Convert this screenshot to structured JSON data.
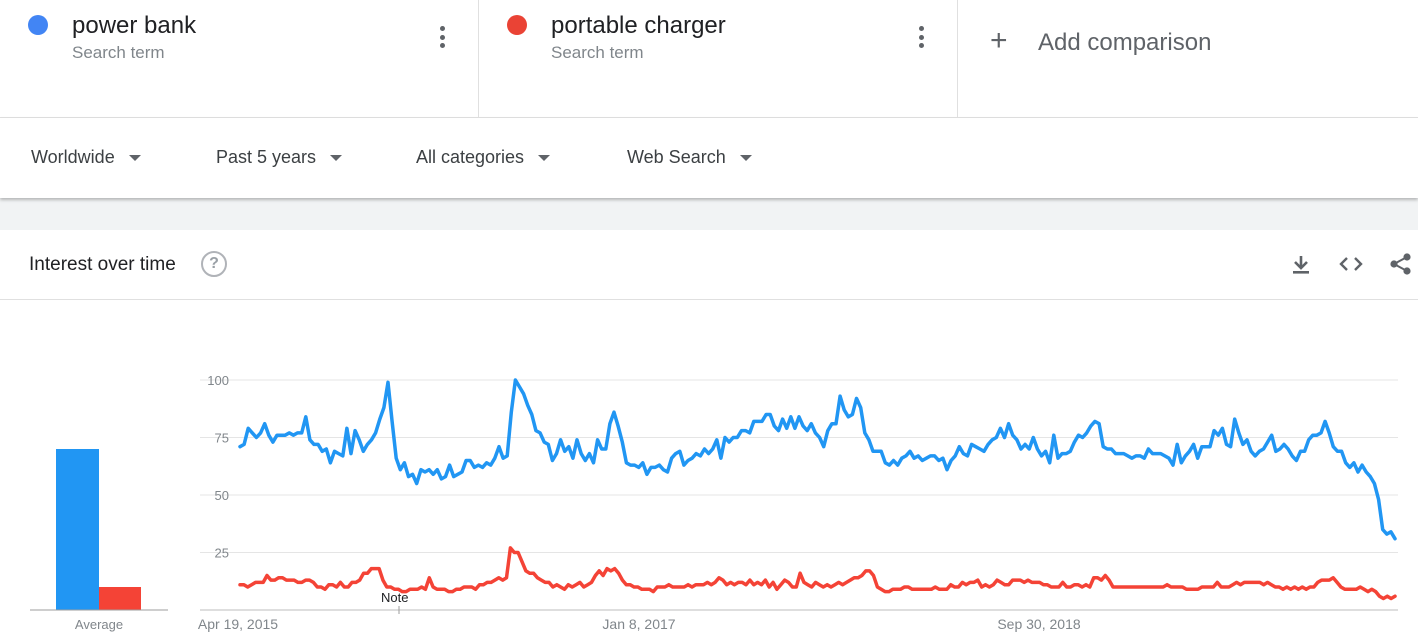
{
  "terms": [
    {
      "name": "power bank",
      "type": "Search term",
      "color": "#4285f4"
    },
    {
      "name": "portable charger",
      "type": "Search term",
      "color": "#ea4335"
    }
  ],
  "add_comparison": "Add comparison",
  "filters": {
    "region": "Worldwide",
    "period": "Past 5 years",
    "category": "All categories",
    "search_type": "Web Search"
  },
  "card": {
    "title": "Interest over time",
    "help": "?"
  },
  "icons": [
    "download-icon",
    "embed-icon",
    "share-icon",
    "help-icon",
    "more-vert-icon",
    "add-icon",
    "dropdown-caret-icon"
  ],
  "chart_data": {
    "type": "line",
    "ylim": [
      0,
      100
    ],
    "yticks": [
      25,
      50,
      75,
      100
    ],
    "xtick_labels": [
      "Apr 19, 2015",
      "Jan 8, 2017",
      "Sep 30, 2018"
    ],
    "note_label": "Note",
    "average": {
      "label": "Average",
      "values": [
        70,
        10
      ]
    },
    "series": [
      {
        "name": "power bank",
        "color": "#2196f3",
        "values": [
          71,
          72,
          79,
          77,
          75,
          77,
          81,
          76,
          73,
          76,
          76,
          76,
          77,
          76,
          77,
          77,
          84,
          74,
          72,
          72,
          69,
          70,
          64,
          69,
          68,
          67,
          79,
          68,
          78,
          74,
          69,
          72,
          74,
          77,
          83,
          88,
          99,
          82,
          66,
          61,
          64,
          58,
          59,
          55,
          61,
          60,
          61,
          59,
          61,
          57,
          58,
          63,
          58,
          59,
          60,
          65,
          65,
          62,
          63,
          62,
          64,
          63,
          66,
          71,
          66,
          67,
          86,
          100,
          97,
          94,
          89,
          85,
          78,
          77,
          73,
          72,
          65,
          68,
          74,
          69,
          71,
          66,
          74,
          68,
          65,
          68,
          64,
          74,
          70,
          70,
          81,
          86,
          80,
          73,
          64,
          63,
          63,
          62,
          64,
          59,
          62,
          62,
          63,
          61,
          60,
          66,
          68,
          69,
          63,
          65,
          66,
          68,
          67,
          70,
          68,
          70,
          74,
          66,
          75,
          73,
          75,
          75,
          78,
          78,
          77,
          82,
          82,
          82,
          85,
          85,
          80,
          78,
          83,
          79,
          84,
          79,
          84,
          80,
          78,
          81,
          77,
          75,
          71,
          78,
          81,
          81,
          93,
          87,
          84,
          85,
          92,
          88,
          77,
          74,
          69,
          69,
          69,
          64,
          63,
          65,
          63,
          66,
          67,
          69,
          66,
          67,
          65,
          66,
          67,
          67,
          65,
          66,
          61,
          65,
          67,
          71,
          68,
          67,
          72,
          71,
          70,
          69,
          72,
          74,
          75,
          79,
          75,
          81,
          76,
          74,
          70,
          72,
          70,
          75,
          70,
          67,
          69,
          64,
          76,
          66,
          68,
          68,
          69,
          73,
          76,
          75,
          77,
          80,
          82,
          81,
          71,
          70,
          70,
          68,
          68,
          68,
          67,
          66,
          67,
          67,
          66,
          70,
          68,
          68,
          68,
          67,
          66,
          63,
          72,
          64,
          67,
          69,
          72,
          66,
          71,
          71,
          71,
          78,
          76,
          79,
          72,
          71,
          83,
          77,
          72,
          74,
          69,
          67,
          69,
          70,
          73,
          76,
          69,
          70,
          72,
          70,
          67,
          65,
          69,
          69,
          74,
          76,
          76,
          77,
          82,
          77,
          71,
          69,
          69,
          64,
          62,
          64,
          60,
          63,
          60,
          58,
          55,
          48,
          35,
          33,
          34,
          31
        ]
      },
      {
        "name": "portable charger",
        "color": "#f44336",
        "values": [
          11,
          11,
          10,
          11,
          12,
          12,
          12,
          15,
          13,
          13,
          14,
          14,
          13,
          13,
          13,
          12,
          12,
          13,
          13,
          12,
          10,
          10,
          9,
          11,
          11,
          10,
          12,
          10,
          10,
          12,
          12,
          13,
          16,
          16,
          18,
          18,
          18,
          13,
          10,
          10,
          9,
          9,
          8,
          8,
          9,
          9,
          9,
          10,
          9,
          14,
          10,
          9,
          9,
          9,
          8,
          8,
          9,
          9,
          10,
          10,
          10,
          9,
          11,
          11,
          12,
          12,
          13,
          14,
          13,
          14,
          27,
          25,
          25,
          21,
          17,
          16,
          16,
          14,
          13,
          12,
          12,
          10,
          11,
          10,
          9,
          11,
          10,
          11,
          12,
          10,
          11,
          12,
          15,
          17,
          15,
          18,
          17,
          18,
          16,
          13,
          11,
          11,
          10,
          10,
          9,
          9,
          9,
          8,
          10,
          10,
          10,
          11,
          10,
          10,
          10,
          10,
          11,
          10,
          11,
          11,
          11,
          12,
          11,
          12,
          14,
          13,
          11,
          12,
          11,
          12,
          12,
          11,
          13,
          11,
          12,
          11,
          13,
          10,
          12,
          9,
          11,
          13,
          12,
          10,
          10,
          16,
          12,
          11,
          10,
          12,
          11,
          10,
          11,
          10,
          11,
          12,
          11,
          12,
          13,
          14,
          14,
          15,
          17,
          17,
          15,
          10,
          9,
          8,
          8,
          9,
          9,
          9,
          10,
          10,
          9,
          9,
          9,
          9,
          9,
          9,
          10,
          9,
          9,
          9,
          11,
          10,
          10,
          12,
          11,
          12,
          12,
          13,
          10,
          11,
          10,
          11,
          13,
          12,
          11,
          11,
          13,
          13,
          13,
          12,
          13,
          12,
          12,
          12,
          11,
          11,
          10,
          10,
          10,
          12,
          10,
          10,
          11,
          11,
          10,
          11,
          10,
          14,
          14,
          13,
          15,
          13,
          10,
          10,
          10,
          10,
          10,
          10,
          10,
          10,
          10,
          10,
          10,
          10,
          10,
          10,
          11,
          10,
          10,
          10,
          10,
          9,
          9,
          9,
          9,
          10,
          10,
          10,
          10,
          12,
          10,
          10,
          10,
          11,
          12,
          11,
          12,
          12,
          12,
          12,
          12,
          11,
          12,
          11,
          10,
          10,
          9,
          10,
          9,
          10,
          9,
          10,
          9,
          10,
          10,
          12,
          13,
          13,
          13,
          14,
          12,
          10,
          9,
          9,
          9,
          9,
          10,
          9,
          8,
          9,
          8,
          6,
          5,
          6,
          5,
          6
        ]
      }
    ]
  }
}
